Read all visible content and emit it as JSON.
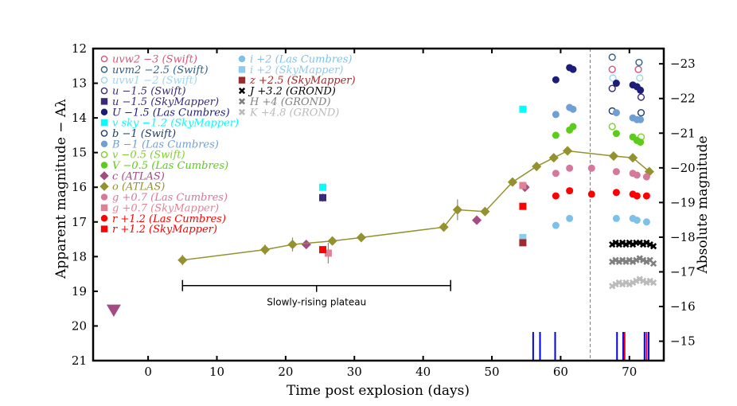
{
  "chart_data": {
    "type": "scatter",
    "xlabel": "Time post explosion (days)",
    "ylabel": "Apparent magnitude − Aλ",
    "ylabel_right": "Absolute magnitude",
    "xlim": [
      -8,
      75
    ],
    "ylim": [
      21,
      12
    ],
    "y_right_lim": [
      -14.44,
      -23.44
    ],
    "x_ticks": [
      0,
      10,
      20,
      30,
      40,
      50,
      60,
      70
    ],
    "y_ticks": [
      12,
      13,
      14,
      15,
      16,
      17,
      18,
      19,
      20,
      21
    ],
    "y_right_ticks": [
      -15,
      -16,
      -17,
      -18,
      -19,
      -20,
      -21,
      -22,
      -23
    ],
    "y_right_tick_labels": [
      "−15",
      "−16",
      "−17",
      "−18",
      "−19",
      "−20",
      "−21",
      "−22",
      "−23"
    ],
    "vline_x": 64.3,
    "annotation": {
      "text": "Slowly-rising plateau",
      "x_start": 5,
      "x_end": 44,
      "y": 18.95
    },
    "spectra_epochs": [
      {
        "x": 56.0,
        "color": "#0000ee"
      },
      {
        "x": 57.0,
        "color": "#0000ee"
      },
      {
        "x": 59.2,
        "color": "#0000ee"
      },
      {
        "x": 68.2,
        "color": "#0000ee"
      },
      {
        "x": 69.1,
        "color": "#0000ee"
      },
      {
        "x": 69.3,
        "color": "#ee0000"
      },
      {
        "x": 72.2,
        "color": "#0000ee"
      },
      {
        "x": 72.5,
        "color": "#ee0000"
      },
      {
        "x": 72.8,
        "color": "#0000ee"
      }
    ],
    "series": [
      {
        "name": "uvw2 −3 (Swift)",
        "color": "#d9547a",
        "marker": "circle-open",
        "points": [
          [
            67.5,
            12.6
          ],
          [
            71.3,
            12.6
          ]
        ]
      },
      {
        "name": "uvm2 −2.5 (Swift)",
        "color": "#2e5f8a",
        "marker": "circle-open",
        "points": [
          [
            67.5,
            12.25
          ],
          [
            71.4,
            12.4
          ]
        ]
      },
      {
        "name": "uvw1 −2 (Swift)",
        "color": "#9fd6ec",
        "marker": "circle-open",
        "points": [
          [
            67.6,
            12.85
          ],
          [
            71.5,
            12.85
          ]
        ]
      },
      {
        "name": "u −1.5 (Swift)",
        "color": "#3a2a78",
        "marker": "circle-open",
        "points": [
          [
            67.5,
            13.15
          ],
          [
            71.7,
            13.4
          ]
        ]
      },
      {
        "name": "u −1.5 (SkyMapper)",
        "color": "#3a2a78",
        "marker": "square",
        "points": [
          [
            25.4,
            16.3
          ]
        ]
      },
      {
        "name": "U −1.5 (Las Cumbres)",
        "color": "#1c1c7a",
        "marker": "circle",
        "points": [
          [
            59.3,
            12.9
          ],
          [
            61.3,
            12.55
          ],
          [
            61.8,
            12.6
          ],
          [
            68.1,
            13.0
          ],
          [
            70.5,
            13.05
          ],
          [
            71.1,
            13.1
          ],
          [
            71.6,
            13.2
          ]
        ]
      },
      {
        "name": "v sky −1.2 (SkyMapper)",
        "color": "#00ffff",
        "marker": "square",
        "points": [
          [
            25.4,
            16.0
          ],
          [
            54.5,
            13.75
          ]
        ]
      },
      {
        "name": "b −1 (Swift)",
        "color": "#1f3d6b",
        "marker": "circle-open",
        "points": [
          [
            67.5,
            13.8
          ],
          [
            71.7,
            13.85
          ]
        ]
      },
      {
        "name": "B −1 (Las Cumbres)",
        "color": "#6f9fd3",
        "marker": "circle",
        "points": [
          [
            59.3,
            13.9
          ],
          [
            61.3,
            13.7
          ],
          [
            61.8,
            13.75
          ],
          [
            68.1,
            13.85
          ],
          [
            70.5,
            14.0
          ],
          [
            71.1,
            14.05
          ],
          [
            71.6,
            14.05
          ]
        ]
      },
      {
        "name": "v −0.5 (Swift)",
        "color": "#7fd02a",
        "marker": "circle-open",
        "points": [
          [
            67.5,
            14.25
          ],
          [
            71.7,
            14.55
          ]
        ]
      },
      {
        "name": "V −0.5 (Las Cumbres)",
        "color": "#5ccc1a",
        "marker": "circle",
        "points": [
          [
            59.3,
            14.5
          ],
          [
            61.3,
            14.35
          ],
          [
            61.8,
            14.25
          ],
          [
            68.1,
            14.45
          ],
          [
            70.5,
            14.55
          ],
          [
            71.1,
            14.65
          ],
          [
            71.6,
            14.7
          ]
        ]
      },
      {
        "name": "c (ATLAS)",
        "color": "#a34b82",
        "marker": "diamond",
        "points": [
          [
            23.0,
            17.65
          ],
          [
            47.8,
            16.95
          ],
          [
            54.8,
            16.0
          ]
        ]
      },
      {
        "name": "o (ATLAS)",
        "color": "#93922f",
        "marker": "diamond",
        "line": true,
        "points": [
          [
            5.0,
            18.1
          ],
          [
            17.0,
            17.8
          ],
          [
            21.0,
            17.65
          ],
          [
            26.8,
            17.55
          ],
          [
            31.0,
            17.45
          ],
          [
            43.0,
            17.15
          ],
          [
            45.0,
            16.65
          ],
          [
            49.0,
            16.7
          ],
          [
            53.0,
            15.85
          ],
          [
            56.5,
            15.4
          ],
          [
            59.0,
            15.15
          ],
          [
            61.0,
            14.95
          ],
          [
            67.7,
            15.1
          ],
          [
            70.5,
            15.15
          ],
          [
            72.9,
            15.55
          ]
        ]
      },
      {
        "name": "g +0.7 (Las Cumbres)",
        "color": "#d5789b",
        "marker": "circle",
        "points": [
          [
            59.3,
            15.6
          ],
          [
            61.3,
            15.45
          ],
          [
            64.5,
            15.45
          ],
          [
            68.1,
            15.55
          ],
          [
            70.5,
            15.6
          ],
          [
            71.1,
            15.65
          ],
          [
            72.5,
            15.7
          ]
        ]
      },
      {
        "name": "g +0.7 (SkyMapper)",
        "color": "#df8296",
        "marker": "square",
        "points": [
          [
            26.2,
            17.9
          ],
          [
            54.5,
            15.95
          ]
        ]
      },
      {
        "name": "r +1.2 (Las Cumbres)",
        "color": "#ff0000",
        "marker": "circle",
        "points": [
          [
            59.3,
            16.25
          ],
          [
            61.3,
            16.1
          ],
          [
            64.5,
            16.2
          ],
          [
            68.1,
            16.15
          ],
          [
            70.5,
            16.2
          ],
          [
            71.1,
            16.25
          ],
          [
            72.5,
            16.25
          ]
        ]
      },
      {
        "name": "r +1.2 (SkyMapper)",
        "color": "#ff0000",
        "marker": "square",
        "points": [
          [
            25.4,
            17.8
          ],
          [
            54.5,
            16.55
          ]
        ]
      },
      {
        "name": "i +2 (Las Cumbres)",
        "color": "#7ec1e8",
        "marker": "circle",
        "points": [
          [
            59.3,
            17.1
          ],
          [
            61.3,
            16.9
          ],
          [
            68.1,
            16.9
          ],
          [
            70.5,
            16.9
          ],
          [
            71.1,
            16.95
          ],
          [
            72.5,
            17.0
          ]
        ]
      },
      {
        "name": "i +2 (SkyMapper)",
        "color": "#8dcbf0",
        "marker": "square",
        "points": [
          [
            54.5,
            17.45
          ]
        ]
      },
      {
        "name": "z +2.5 (SkyMapper)",
        "color": "#9c2b2b",
        "marker": "square",
        "points": [
          [
            54.5,
            17.6
          ]
        ]
      },
      {
        "name": "J +3.2 (GROND)",
        "color": "#000000",
        "marker": "x",
        "points": [
          [
            67.5,
            17.65
          ],
          [
            68.0,
            17.6
          ],
          [
            68.5,
            17.65
          ],
          [
            69.0,
            17.6
          ],
          [
            69.5,
            17.65
          ],
          [
            70.0,
            17.6
          ],
          [
            70.5,
            17.65
          ],
          [
            71.0,
            17.6
          ],
          [
            71.5,
            17.6
          ],
          [
            72.0,
            17.65
          ],
          [
            72.5,
            17.6
          ],
          [
            73.0,
            17.65
          ],
          [
            73.5,
            17.7
          ]
        ]
      },
      {
        "name": "H +4 (GROND)",
        "color": "#808080",
        "marker": "x",
        "points": [
          [
            67.5,
            18.15
          ],
          [
            68.0,
            18.1
          ],
          [
            68.5,
            18.15
          ],
          [
            69.0,
            18.1
          ],
          [
            69.5,
            18.15
          ],
          [
            70.0,
            18.1
          ],
          [
            70.5,
            18.15
          ],
          [
            71.0,
            18.1
          ],
          [
            71.5,
            18.05
          ],
          [
            72.0,
            18.1
          ],
          [
            72.5,
            18.15
          ],
          [
            73.0,
            18.1
          ],
          [
            73.5,
            18.2
          ]
        ]
      },
      {
        "name": "K +4.8 (GROND)",
        "color": "#bbbbbb",
        "marker": "x",
        "points": [
          [
            67.5,
            18.85
          ],
          [
            68.0,
            18.8
          ],
          [
            68.5,
            18.75
          ],
          [
            69.0,
            18.8
          ],
          [
            69.5,
            18.75
          ],
          [
            70.0,
            18.8
          ],
          [
            70.5,
            18.75
          ],
          [
            71.0,
            18.7
          ],
          [
            71.5,
            18.65
          ],
          [
            72.0,
            18.7
          ],
          [
            72.5,
            18.75
          ],
          [
            73.0,
            18.7
          ],
          [
            73.5,
            18.75
          ]
        ]
      }
    ],
    "limit_marker": {
      "x": -5,
      "y": 19.55,
      "color": "#a34b82",
      "marker": "triangle-down"
    },
    "error_bars": [
      {
        "x": 5.0,
        "y": 18.1,
        "err": 0.15
      },
      {
        "x": 17.0,
        "y": 17.8,
        "err": 0.15
      },
      {
        "x": 21.0,
        "y": 17.65,
        "err": 0.2
      },
      {
        "x": 26.8,
        "y": 17.55,
        "err": 0.1
      },
      {
        "x": 45.0,
        "y": 16.65,
        "err": 0.3
      },
      {
        "x": 26.2,
        "y": 17.9,
        "err": 0.3
      },
      {
        "x": 25.4,
        "y": 16.3,
        "err": 0.12
      }
    ],
    "legend_columns": [
      [
        0,
        1,
        2,
        3,
        4,
        5,
        6,
        7,
        8,
        9,
        10,
        11,
        12,
        13,
        14,
        15,
        16
      ],
      [
        17,
        18,
        19,
        20,
        21,
        22
      ]
    ]
  }
}
